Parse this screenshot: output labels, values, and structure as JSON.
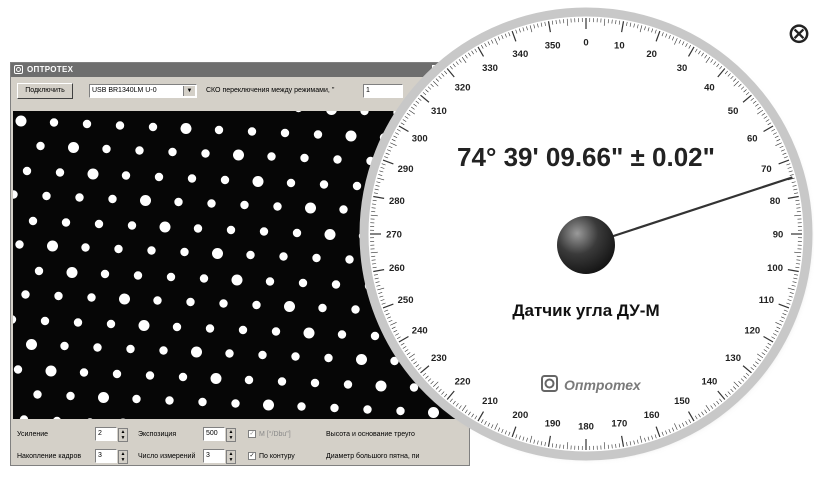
{
  "window": {
    "title": "ОПТРОТЕХ",
    "buttons": {
      "minimize": "_",
      "maximize": "□",
      "close": "×"
    }
  },
  "toolbar": {
    "connect_label": "Подключить",
    "camera_select_value": "USB BR1340LM U-0",
    "sko_label": "СКО переключения между режимами, ''",
    "sko_value": "1"
  },
  "controls": {
    "gain_label": "Усиление",
    "gain_value": "2",
    "exposure_label": "Экспозиция",
    "exposure_value": "500",
    "m_label": "M [°/Dbu\"]",
    "height_label": "Высота и основание треуго",
    "accum_label": "Накопление кадров",
    "accum_value": "3",
    "meas_count_label": "Число измерений",
    "meas_count_value": "3",
    "contour_label": "По контуру",
    "diameter_label": "Диаметр большого пятна, пи"
  },
  "dial": {
    "reading": "74° 39' 09.66\" ± 0.02\"",
    "needle_angle_deg": 74.66,
    "sensor_name": "Датчик угла ДУ-М",
    "brand": "Оптротех",
    "scale_labels": [
      "0",
      "10",
      "20",
      "30",
      "40",
      "50",
      "60",
      "70",
      "80",
      "90",
      "100",
      "110",
      "120",
      "130",
      "140",
      "150",
      "160",
      "170",
      "180",
      "190",
      "200",
      "210",
      "220",
      "230",
      "240",
      "250",
      "260",
      "270",
      "280",
      "290",
      "300",
      "310",
      "320",
      "330",
      "340",
      "350"
    ]
  },
  "colors": {
    "titlebar": "#6e6e6e",
    "window_face": "#d4d0c8",
    "dial_rim": "#c8c8c8",
    "dial_text": "#222222",
    "brand": "#7a7a7a"
  },
  "icons": {
    "close_overlay": "close-circle-icon",
    "app": "optrotech-logo-icon"
  }
}
